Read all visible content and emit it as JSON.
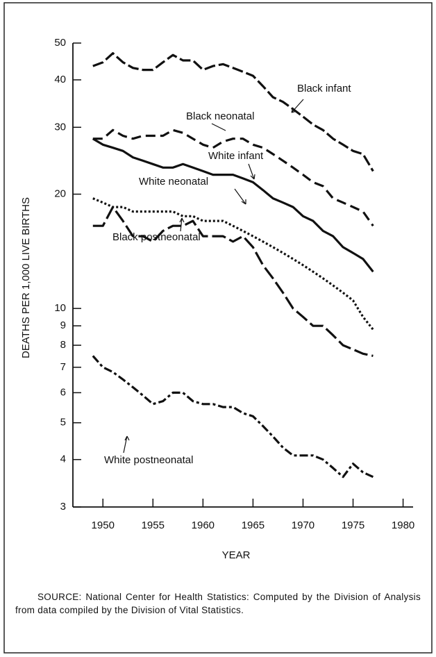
{
  "chart_data": {
    "type": "line",
    "y_label": "DEATHS PER 1,000 LIVE BIRTHS",
    "x_label": "YEAR",
    "source": "SOURCE: National Center for Health Statistics: Computed by the Division of Analysis from data compiled by the Division of Vital Statistics.",
    "x": [
      1949,
      1950,
      1951,
      1952,
      1953,
      1954,
      1955,
      1956,
      1957,
      1958,
      1959,
      1960,
      1961,
      1962,
      1963,
      1964,
      1965,
      1966,
      1967,
      1968,
      1969,
      1970,
      1971,
      1972,
      1973,
      1974,
      1975,
      1976,
      1977
    ],
    "series": [
      {
        "name": "Black infant",
        "color": "#111111",
        "dash": "16 5",
        "values": [
          43.5,
          44.5,
          47,
          44.5,
          43,
          42.5,
          42.5,
          44.5,
          46.5,
          45,
          45,
          42.5,
          43.5,
          44,
          43,
          42,
          41,
          38.5,
          36,
          35,
          33.5,
          32,
          30.5,
          29.5,
          28,
          27,
          26,
          25.5,
          23
        ]
      },
      {
        "name": "Black neonatal",
        "color": "#111111",
        "dash": "14 7",
        "values": [
          28,
          28,
          29.5,
          28.5,
          28,
          28.5,
          28.5,
          28.5,
          29.5,
          29,
          28,
          27,
          26.5,
          27.5,
          28,
          28,
          27,
          26.5,
          25.5,
          24.5,
          23.5,
          22.5,
          21.5,
          21,
          19.5,
          19,
          18.5,
          18,
          16.5
        ]
      },
      {
        "name": "White infant",
        "color": "#111111",
        "dash": "none",
        "values": [
          28,
          27,
          26.5,
          26,
          25,
          24.5,
          24,
          23.5,
          23.5,
          24,
          23.5,
          23,
          22.5,
          22.5,
          22.5,
          22,
          21.5,
          20.5,
          19.5,
          19,
          18.5,
          17.5,
          17,
          16,
          15.5,
          14.5,
          14,
          13.5,
          12.5
        ]
      },
      {
        "name": "White neonatal",
        "color": "#111111",
        "dash": "3 3",
        "values": [
          19.5,
          19,
          18.5,
          18.5,
          18,
          18,
          18,
          18,
          18,
          17.5,
          17.5,
          17,
          17,
          17,
          16.5,
          16,
          15.5,
          15,
          14.5,
          14,
          13.5,
          13,
          12.5,
          12,
          11.5,
          11,
          10.5,
          9.5,
          8.8
        ]
      },
      {
        "name": "Black postneonatal",
        "color": "#111111",
        "dash": "20 6",
        "values": [
          16.5,
          16.5,
          18.5,
          17,
          15.5,
          15.5,
          15,
          16,
          16.5,
          16.5,
          17,
          15.5,
          15.5,
          15.5,
          15,
          15.5,
          14.5,
          13,
          12,
          11,
          10,
          9.5,
          9,
          9,
          8.5,
          8,
          7.8,
          7.6,
          7.5
        ]
      },
      {
        "name": "White postneonatal",
        "color": "#111111",
        "dash": "12 4 4 4",
        "values": [
          7.5,
          7,
          6.8,
          6.5,
          6.2,
          5.9,
          5.6,
          5.7,
          6,
          6,
          5.7,
          5.6,
          5.6,
          5.5,
          5.5,
          5.3,
          5.2,
          4.9,
          4.6,
          4.3,
          4.1,
          4.1,
          4.1,
          4,
          3.8,
          3.6,
          3.9,
          3.7,
          3.6
        ]
      }
    ],
    "xlim": [
      1947,
      1981
    ],
    "xticks": [
      1950,
      1955,
      1960,
      1965,
      1970,
      1975,
      1980
    ],
    "ylim": [
      3,
      50
    ],
    "yticks": [
      3,
      4,
      5,
      6,
      7,
      8,
      9,
      10,
      20,
      30,
      40,
      50
    ],
    "log_y": true,
    "grid": false
  }
}
